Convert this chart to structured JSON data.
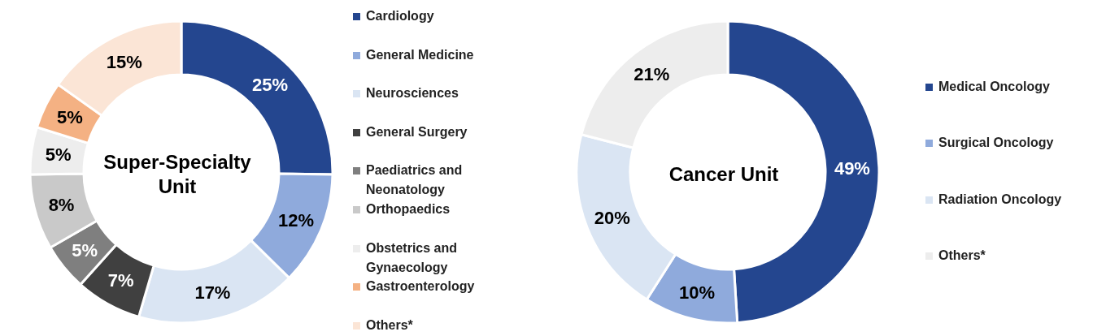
{
  "chart_data": [
    {
      "type": "donut",
      "title": "Super-Specialty Unit",
      "categories": [
        "Cardiology",
        "General Medicine",
        "Neurosciences",
        "General Surgery",
        "Paediatrics and Neonatology",
        "Orthopaedics",
        "Obstetrics and Gynaecology",
        "Gastroenterology",
        "Others*"
      ],
      "values": [
        25,
        12,
        17,
        7,
        5,
        8,
        5,
        5,
        15
      ],
      "value_labels": [
        "25%",
        "12%",
        "17%",
        "7%",
        "5%",
        "8%",
        "5%",
        "5%",
        "15%"
      ],
      "colors": [
        "#24468f",
        "#8faadc",
        "#dae5f3",
        "#404040",
        "#7f7f7f",
        "#c9c9c9",
        "#ededed",
        "#f4b183",
        "#fbe5d6"
      ],
      "legend": "right"
    },
    {
      "type": "donut",
      "title": "Cancer Unit",
      "categories": [
        "Medical Oncology",
        "Surgical Oncology",
        "Radiation Oncology",
        "Others*"
      ],
      "values": [
        49,
        10,
        20,
        21
      ],
      "value_labels": [
        "49%",
        "10%",
        "20%",
        "21%"
      ],
      "colors": [
        "#24468f",
        "#8faadc",
        "#dae5f3",
        "#ededed"
      ],
      "legend": "right"
    }
  ]
}
